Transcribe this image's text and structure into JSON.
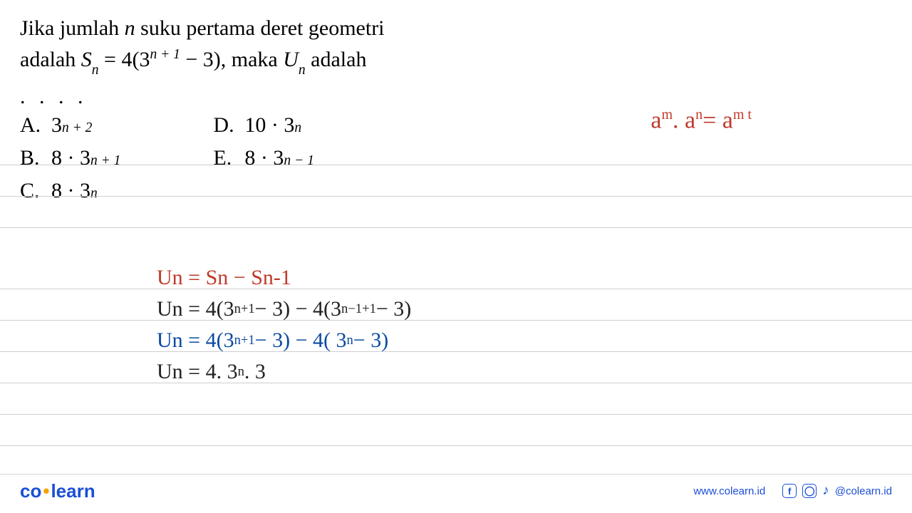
{
  "question": {
    "line1_pre": "Jika jumlah ",
    "line1_var": "n",
    "line1_post": " suku pertama deret geometri",
    "line2_pre": "adalah ",
    "line2_S": "S",
    "line2_sub_n": "n",
    "line2_eq": " = 4(3",
    "line2_sup": "n + 1",
    "line2_mid": " − 3), maka ",
    "line2_U": "U",
    "line2_sub_n2": "n",
    "line2_post": " adalah",
    "dots": ". . . ."
  },
  "options": {
    "A_letter": "A.",
    "A_base": "3",
    "A_sup": "n + 2",
    "B_letter": "B.",
    "B_pre": "8 · 3",
    "B_sup": "n + 1",
    "C_letter": "C.",
    "C_pre": "8 · 3",
    "C_sup": "n",
    "D_letter": "D.",
    "D_pre": "10 · 3",
    "D_sup": "n",
    "E_letter": "E.",
    "E_pre": "8 · 3",
    "E_sup": "n − 1"
  },
  "annotation": {
    "law_a1": "a",
    "law_m": "m",
    "law_dot": ". a",
    "law_n": "n",
    "law_eq": "= a",
    "law_mt": "m t"
  },
  "work": {
    "l1": "Un = Sn − Sn-1",
    "l2_a": "Un = 4(3",
    "l2_sup1": "n+1",
    "l2_b": " − 3) − 4(3",
    "l2_sup2": "n−1+1",
    "l2_c": " − 3)",
    "l3_a": "Un = 4(3",
    "l3_sup1": "n+1",
    "l3_b": " − 3) − 4( 3",
    "l3_sup2": "n",
    "l3_c": " − 3)",
    "l4_a": "Un = 4. 3",
    "l4_sup": "n",
    "l4_b": ". 3"
  },
  "footer": {
    "logo_co": "co",
    "logo_learn": "learn",
    "url": "www.colearn.id",
    "handle": "@colearn.id"
  },
  "colors": {
    "red": "#c0392b",
    "blue": "#0b4aa2",
    "black": "#222222",
    "brand": "#1a4fd6",
    "accent": "#f6a000",
    "rule": "#cfcfcf"
  }
}
